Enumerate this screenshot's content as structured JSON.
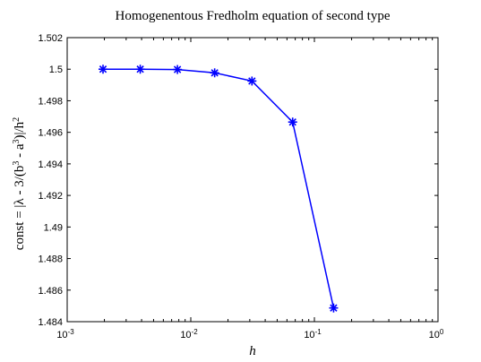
{
  "chart_data": {
    "type": "line",
    "title": "Homogenentous Fredholm equation of second type",
    "xlabel": "h",
    "ylabel": "const = |λ - 3/(b³ - a³)|/h²",
    "ylabel_parts": {
      "main": "const = |λ - 3/(b",
      "exp1": "3",
      "mid": " - a",
      "exp2": "3",
      "tail": ")|/h",
      "exp3": "2"
    },
    "xscale": "log",
    "xlim": [
      0.001,
      1
    ],
    "ylim": [
      1.484,
      1.502
    ],
    "x_ticks": [
      {
        "value": 0.001,
        "base": "10",
        "exp": "-3"
      },
      {
        "value": 0.01,
        "base": "10",
        "exp": "-2"
      },
      {
        "value": 0.1,
        "base": "10",
        "exp": "-1"
      },
      {
        "value": 1,
        "base": "10",
        "exp": "0"
      }
    ],
    "y_ticks": [
      {
        "value": 1.484,
        "label": "1.484"
      },
      {
        "value": 1.486,
        "label": "1.486"
      },
      {
        "value": 1.488,
        "label": "1.488"
      },
      {
        "value": 1.49,
        "label": "1.49"
      },
      {
        "value": 1.492,
        "label": "1.492"
      },
      {
        "value": 1.494,
        "label": "1.494"
      },
      {
        "value": 1.496,
        "label": "1.496"
      },
      {
        "value": 1.498,
        "label": "1.498"
      },
      {
        "value": 1.5,
        "label": "1.5"
      },
      {
        "value": 1.502,
        "label": "1.502"
      }
    ],
    "grid": false,
    "series": [
      {
        "color": "#0000ff",
        "marker": "asterisk",
        "x": [
          0.00195,
          0.0039,
          0.0078,
          0.0156,
          0.03125,
          0.0667,
          0.143
        ],
        "y": [
          1.5,
          1.5,
          1.49998,
          1.49977,
          1.49925,
          1.49665,
          1.48487
        ]
      }
    ]
  }
}
